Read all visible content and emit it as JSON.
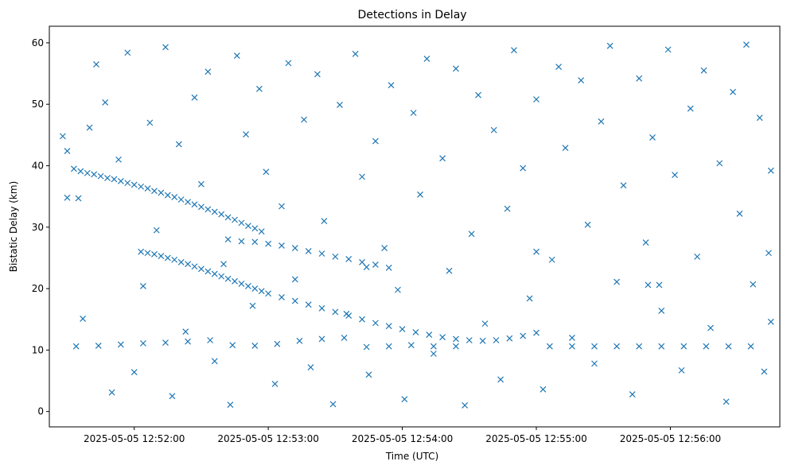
{
  "chart_data": {
    "type": "scatter",
    "title": "Detections in Delay",
    "xlabel": "Time (UTC)",
    "ylabel": "Bistatic Delay (km)",
    "x_axis_type": "time",
    "xlim": [
      "2025-05-05 12:51:22",
      "2025-05-05 12:56:49"
    ],
    "ylim": [
      -2.5,
      62.7
    ],
    "x_ticks": [
      "2025-05-05 12:52:00",
      "2025-05-05 12:53:00",
      "2025-05-05 12:54:00",
      "2025-05-05 12:55:00",
      "2025-05-05 12:56:00"
    ],
    "y_ticks": [
      0,
      10,
      20,
      30,
      40,
      50,
      60
    ],
    "marker": "x",
    "color": "#1f77b4",
    "grid": false,
    "legend": "none",
    "series": [
      {
        "points": [
          [
            "2025-05-05 12:51:33",
            39.5
          ],
          [
            "2025-05-05 12:51:36",
            39.1
          ],
          [
            "2025-05-05 12:51:39",
            38.8
          ],
          [
            "2025-05-05 12:51:42",
            38.6
          ],
          [
            "2025-05-05 12:51:45",
            38.3
          ],
          [
            "2025-05-05 12:51:48",
            38.0
          ],
          [
            "2025-05-05 12:51:51",
            37.8
          ],
          [
            "2025-05-05 12:51:54",
            37.5
          ],
          [
            "2025-05-05 12:51:57",
            37.2
          ],
          [
            "2025-05-05 12:52:00",
            36.9
          ],
          [
            "2025-05-05 12:52:03",
            36.6
          ],
          [
            "2025-05-05 12:52:06",
            36.3
          ],
          [
            "2025-05-05 12:52:09",
            35.9
          ],
          [
            "2025-05-05 12:52:12",
            35.6
          ],
          [
            "2025-05-05 12:52:15",
            35.2
          ],
          [
            "2025-05-05 12:52:18",
            34.9
          ],
          [
            "2025-05-05 12:52:21",
            34.5
          ],
          [
            "2025-05-05 12:52:24",
            34.1
          ],
          [
            "2025-05-05 12:52:27",
            33.7
          ],
          [
            "2025-05-05 12:52:30",
            33.3
          ],
          [
            "2025-05-05 12:52:33",
            32.9
          ],
          [
            "2025-05-05 12:52:36",
            32.5
          ],
          [
            "2025-05-05 12:52:39",
            32.1
          ],
          [
            "2025-05-05 12:52:42",
            31.6
          ],
          [
            "2025-05-05 12:52:45",
            31.2
          ],
          [
            "2025-05-05 12:52:48",
            30.7
          ],
          [
            "2025-05-05 12:52:51",
            30.2
          ],
          [
            "2025-05-05 12:52:54",
            29.8
          ],
          [
            "2025-05-05 12:52:57",
            29.3
          ],
          [
            "2025-05-05 12:52:42",
            28.0
          ],
          [
            "2025-05-05 12:52:48",
            27.7
          ],
          [
            "2025-05-05 12:52:54",
            27.6
          ],
          [
            "2025-05-05 12:53:00",
            27.3
          ],
          [
            "2025-05-05 12:53:06",
            27.0
          ],
          [
            "2025-05-05 12:53:12",
            26.6
          ],
          [
            "2025-05-05 12:53:18",
            26.1
          ],
          [
            "2025-05-05 12:53:24",
            25.7
          ],
          [
            "2025-05-05 12:53:30",
            25.2
          ],
          [
            "2025-05-05 12:53:36",
            24.8
          ],
          [
            "2025-05-05 12:53:42",
            24.3
          ],
          [
            "2025-05-05 12:53:48",
            23.9
          ],
          [
            "2025-05-05 12:53:54",
            23.4
          ],
          [
            "2025-05-05 12:52:03",
            26.0
          ],
          [
            "2025-05-05 12:52:06",
            25.8
          ],
          [
            "2025-05-05 12:52:09",
            25.6
          ],
          [
            "2025-05-05 12:52:12",
            25.3
          ],
          [
            "2025-05-05 12:52:15",
            25.0
          ],
          [
            "2025-05-05 12:52:18",
            24.7
          ],
          [
            "2025-05-05 12:52:21",
            24.3
          ],
          [
            "2025-05-05 12:52:24",
            24.0
          ],
          [
            "2025-05-05 12:52:27",
            23.6
          ],
          [
            "2025-05-05 12:52:30",
            23.2
          ],
          [
            "2025-05-05 12:52:33",
            22.8
          ],
          [
            "2025-05-05 12:52:36",
            22.4
          ],
          [
            "2025-05-05 12:52:39",
            22.0
          ],
          [
            "2025-05-05 12:52:42",
            21.6
          ],
          [
            "2025-05-05 12:52:45",
            21.2
          ],
          [
            "2025-05-05 12:52:48",
            20.8
          ],
          [
            "2025-05-05 12:52:51",
            20.4
          ],
          [
            "2025-05-05 12:52:54",
            20.0
          ],
          [
            "2025-05-05 12:52:57",
            19.6
          ],
          [
            "2025-05-05 12:53:00",
            19.2
          ],
          [
            "2025-05-05 12:53:06",
            18.6
          ],
          [
            "2025-05-05 12:53:12",
            18.0
          ],
          [
            "2025-05-05 12:53:18",
            17.4
          ],
          [
            "2025-05-05 12:53:24",
            16.8
          ],
          [
            "2025-05-05 12:53:30",
            16.2
          ],
          [
            "2025-05-05 12:53:36",
            15.6
          ],
          [
            "2025-05-05 12:53:42",
            15.0
          ],
          [
            "2025-05-05 12:53:48",
            14.4
          ],
          [
            "2025-05-05 12:53:54",
            13.9
          ],
          [
            "2025-05-05 12:54:00",
            13.4
          ],
          [
            "2025-05-05 12:54:06",
            12.9
          ],
          [
            "2025-05-05 12:54:12",
            12.5
          ],
          [
            "2025-05-05 12:54:18",
            12.1
          ],
          [
            "2025-05-05 12:54:24",
            11.8
          ],
          [
            "2025-05-05 12:54:30",
            11.6
          ],
          [
            "2025-05-05 12:54:36",
            11.5
          ],
          [
            "2025-05-05 12:54:42",
            11.6
          ],
          [
            "2025-05-05 12:54:48",
            11.9
          ],
          [
            "2025-05-05 12:54:54",
            12.3
          ],
          [
            "2025-05-05 12:55:00",
            12.8
          ],
          [
            "2025-05-05 12:51:34",
            10.6
          ],
          [
            "2025-05-05 12:51:44",
            10.7
          ],
          [
            "2025-05-05 12:51:54",
            10.9
          ],
          [
            "2025-05-05 12:52:04",
            11.1
          ],
          [
            "2025-05-05 12:52:14",
            11.2
          ],
          [
            "2025-05-05 12:52:24",
            11.4
          ],
          [
            "2025-05-05 12:52:34",
            11.6
          ],
          [
            "2025-05-05 12:52:44",
            10.8
          ],
          [
            "2025-05-05 12:52:54",
            10.7
          ],
          [
            "2025-05-05 12:53:04",
            11.0
          ],
          [
            "2025-05-05 12:53:14",
            11.5
          ],
          [
            "2025-05-05 12:53:24",
            11.8
          ],
          [
            "2025-05-05 12:53:34",
            12.0
          ],
          [
            "2025-05-05 12:53:44",
            10.5
          ],
          [
            "2025-05-05 12:53:54",
            10.6
          ],
          [
            "2025-05-05 12:54:04",
            10.8
          ],
          [
            "2025-05-05 12:54:14",
            10.6
          ],
          [
            "2025-05-05 12:54:24",
            10.6
          ],
          [
            "2025-05-05 12:55:06",
            10.6
          ],
          [
            "2025-05-05 12:55:16",
            10.6
          ],
          [
            "2025-05-05 12:55:26",
            10.6
          ],
          [
            "2025-05-05 12:55:36",
            10.6
          ],
          [
            "2025-05-05 12:55:46",
            10.6
          ],
          [
            "2025-05-05 12:55:56",
            10.6
          ],
          [
            "2025-05-05 12:56:06",
            10.6
          ],
          [
            "2025-05-05 12:56:16",
            10.6
          ],
          [
            "2025-05-05 12:56:26",
            10.6
          ],
          [
            "2025-05-05 12:56:36",
            10.6
          ],
          [
            "2025-05-05 12:51:30",
            34.8
          ],
          [
            "2025-05-05 12:51:35",
            34.7
          ],
          [
            "2025-05-05 12:53:44",
            23.5
          ],
          [
            "2025-05-05 12:55:00",
            26.0
          ],
          [
            "2025-05-05 12:55:50",
            20.6
          ],
          [
            "2025-05-05 12:55:55",
            20.6
          ],
          [
            "2025-05-05 12:51:28",
            44.8
          ],
          [
            "2025-05-05 12:51:30",
            42.4
          ],
          [
            "2025-05-05 12:51:37",
            15.1
          ],
          [
            "2025-05-05 12:51:40",
            46.2
          ],
          [
            "2025-05-05 12:51:43",
            56.5
          ],
          [
            "2025-05-05 12:51:47",
            50.3
          ],
          [
            "2025-05-05 12:51:50",
            3.1
          ],
          [
            "2025-05-05 12:51:53",
            41.0
          ],
          [
            "2025-05-05 12:51:57",
            58.4
          ],
          [
            "2025-05-05 12:52:00",
            6.4
          ],
          [
            "2025-05-05 12:52:04",
            20.4
          ],
          [
            "2025-05-05 12:52:07",
            47.0
          ],
          [
            "2025-05-05 12:52:10",
            29.5
          ],
          [
            "2025-05-05 12:52:14",
            59.3
          ],
          [
            "2025-05-05 12:52:17",
            2.5
          ],
          [
            "2025-05-05 12:52:20",
            43.5
          ],
          [
            "2025-05-05 12:52:23",
            13.0
          ],
          [
            "2025-05-05 12:52:27",
            51.1
          ],
          [
            "2025-05-05 12:52:30",
            37.0
          ],
          [
            "2025-05-05 12:52:33",
            55.3
          ],
          [
            "2025-05-05 12:52:36",
            8.2
          ],
          [
            "2025-05-05 12:52:40",
            24.0
          ],
          [
            "2025-05-05 12:52:43",
            1.1
          ],
          [
            "2025-05-05 12:52:46",
            57.9
          ],
          [
            "2025-05-05 12:52:50",
            45.1
          ],
          [
            "2025-05-05 12:52:53",
            17.2
          ],
          [
            "2025-05-05 12:52:56",
            52.5
          ],
          [
            "2025-05-05 12:52:59",
            39.0
          ],
          [
            "2025-05-05 12:53:03",
            4.5
          ],
          [
            "2025-05-05 12:53:06",
            33.4
          ],
          [
            "2025-05-05 12:53:09",
            56.7
          ],
          [
            "2025-05-05 12:53:12",
            21.5
          ],
          [
            "2025-05-05 12:53:16",
            47.5
          ],
          [
            "2025-05-05 12:53:19",
            7.2
          ],
          [
            "2025-05-05 12:53:22",
            54.9
          ],
          [
            "2025-05-05 12:53:25",
            31.0
          ],
          [
            "2025-05-05 12:53:29",
            1.2
          ],
          [
            "2025-05-05 12:53:32",
            49.9
          ],
          [
            "2025-05-05 12:53:35",
            15.9
          ],
          [
            "2025-05-05 12:53:39",
            58.2
          ],
          [
            "2025-05-05 12:53:42",
            38.2
          ],
          [
            "2025-05-05 12:53:45",
            6.0
          ],
          [
            "2025-05-05 12:53:48",
            44.0
          ],
          [
            "2025-05-05 12:53:52",
            26.6
          ],
          [
            "2025-05-05 12:53:55",
            53.1
          ],
          [
            "2025-05-05 12:53:58",
            19.8
          ],
          [
            "2025-05-05 12:54:01",
            2.0
          ],
          [
            "2025-05-05 12:54:05",
            48.6
          ],
          [
            "2025-05-05 12:54:08",
            35.3
          ],
          [
            "2025-05-05 12:54:11",
            57.4
          ],
          [
            "2025-05-05 12:54:14",
            9.4
          ],
          [
            "2025-05-05 12:54:18",
            41.2
          ],
          [
            "2025-05-05 12:54:21",
            22.9
          ],
          [
            "2025-05-05 12:54:24",
            55.8
          ],
          [
            "2025-05-05 12:54:28",
            1.0
          ],
          [
            "2025-05-05 12:54:31",
            28.9
          ],
          [
            "2025-05-05 12:54:34",
            51.5
          ],
          [
            "2025-05-05 12:54:37",
            14.3
          ],
          [
            "2025-05-05 12:54:41",
            45.8
          ],
          [
            "2025-05-05 12:54:44",
            5.2
          ],
          [
            "2025-05-05 12:54:47",
            33.0
          ],
          [
            "2025-05-05 12:54:50",
            58.8
          ],
          [
            "2025-05-05 12:54:54",
            39.6
          ],
          [
            "2025-05-05 12:54:57",
            18.4
          ],
          [
            "2025-05-05 12:55:00",
            50.8
          ],
          [
            "2025-05-05 12:55:03",
            3.6
          ],
          [
            "2025-05-05 12:55:07",
            24.7
          ],
          [
            "2025-05-05 12:55:10",
            56.1
          ],
          [
            "2025-05-05 12:55:13",
            42.9
          ],
          [
            "2025-05-05 12:55:16",
            12.0
          ],
          [
            "2025-05-05 12:55:20",
            53.9
          ],
          [
            "2025-05-05 12:55:23",
            30.4
          ],
          [
            "2025-05-05 12:55:26",
            7.8
          ],
          [
            "2025-05-05 12:55:29",
            47.2
          ],
          [
            "2025-05-05 12:55:33",
            59.5
          ],
          [
            "2025-05-05 12:55:36",
            21.1
          ],
          [
            "2025-05-05 12:55:39",
            36.8
          ],
          [
            "2025-05-05 12:55:43",
            2.8
          ],
          [
            "2025-05-05 12:55:46",
            54.2
          ],
          [
            "2025-05-05 12:55:49",
            27.5
          ],
          [
            "2025-05-05 12:55:52",
            44.6
          ],
          [
            "2025-05-05 12:55:56",
            16.4
          ],
          [
            "2025-05-05 12:55:59",
            58.9
          ],
          [
            "2025-05-05 12:56:02",
            38.5
          ],
          [
            "2025-05-05 12:56:05",
            6.7
          ],
          [
            "2025-05-05 12:56:09",
            49.3
          ],
          [
            "2025-05-05 12:56:12",
            25.2
          ],
          [
            "2025-05-05 12:56:15",
            55.5
          ],
          [
            "2025-05-05 12:56:18",
            13.6
          ],
          [
            "2025-05-05 12:56:22",
            40.4
          ],
          [
            "2025-05-05 12:56:25",
            1.6
          ],
          [
            "2025-05-05 12:56:28",
            52.0
          ],
          [
            "2025-05-05 12:56:31",
            32.2
          ],
          [
            "2025-05-05 12:56:34",
            59.7
          ],
          [
            "2025-05-05 12:56:37",
            20.7
          ],
          [
            "2025-05-05 12:56:40",
            47.8
          ],
          [
            "2025-05-05 12:56:42",
            6.5
          ],
          [
            "2025-05-05 12:56:44",
            25.8
          ],
          [
            "2025-05-05 12:56:45",
            39.2
          ],
          [
            "2025-05-05 12:56:45",
            14.6
          ]
        ]
      }
    ]
  }
}
